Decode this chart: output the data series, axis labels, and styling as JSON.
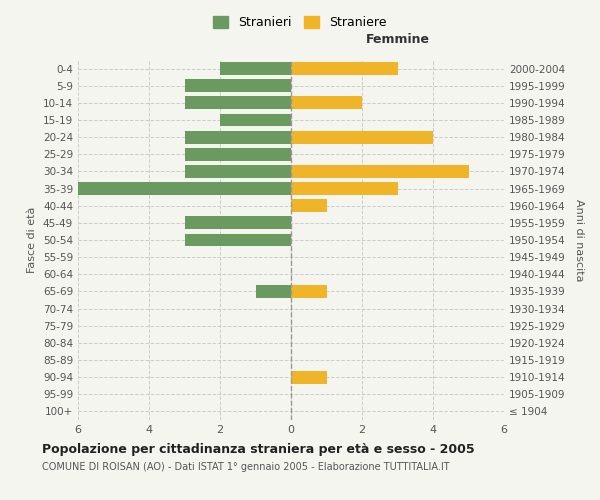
{
  "age_groups": [
    "100+",
    "95-99",
    "90-94",
    "85-89",
    "80-84",
    "75-79",
    "70-74",
    "65-69",
    "60-64",
    "55-59",
    "50-54",
    "45-49",
    "40-44",
    "35-39",
    "30-34",
    "25-29",
    "20-24",
    "15-19",
    "10-14",
    "5-9",
    "0-4"
  ],
  "birth_years": [
    "≤ 1904",
    "1905-1909",
    "1910-1914",
    "1915-1919",
    "1920-1924",
    "1925-1929",
    "1930-1934",
    "1935-1939",
    "1940-1944",
    "1945-1949",
    "1950-1954",
    "1955-1959",
    "1960-1964",
    "1965-1969",
    "1970-1974",
    "1975-1979",
    "1980-1984",
    "1985-1989",
    "1990-1994",
    "1995-1999",
    "2000-2004"
  ],
  "males": [
    0,
    0,
    0,
    0,
    0,
    0,
    0,
    1,
    0,
    0,
    3,
    3,
    0,
    6,
    3,
    3,
    3,
    2,
    3,
    3,
    2
  ],
  "females": [
    0,
    0,
    1,
    0,
    0,
    0,
    0,
    1,
    0,
    0,
    0,
    0,
    1,
    3,
    5,
    0,
    4,
    0,
    2,
    0,
    3
  ],
  "male_color": "#6a9a5f",
  "female_color": "#f0b429",
  "background_color": "#f5f5f0",
  "grid_color": "#cccccc",
  "title": "Popolazione per cittadinanza straniera per età e sesso - 2005",
  "subtitle": "COMUNE DI ROISAN (AO) - Dati ISTAT 1° gennaio 2005 - Elaborazione TUTTITALIA.IT",
  "xlabel_right": "Femmine",
  "ylabel_left": "Fasce di età",
  "ylabel_right": "Anni di nascita",
  "legend_male": "Stranieri",
  "legend_female": "Straniere",
  "xlim": 6,
  "bar_height": 0.75
}
